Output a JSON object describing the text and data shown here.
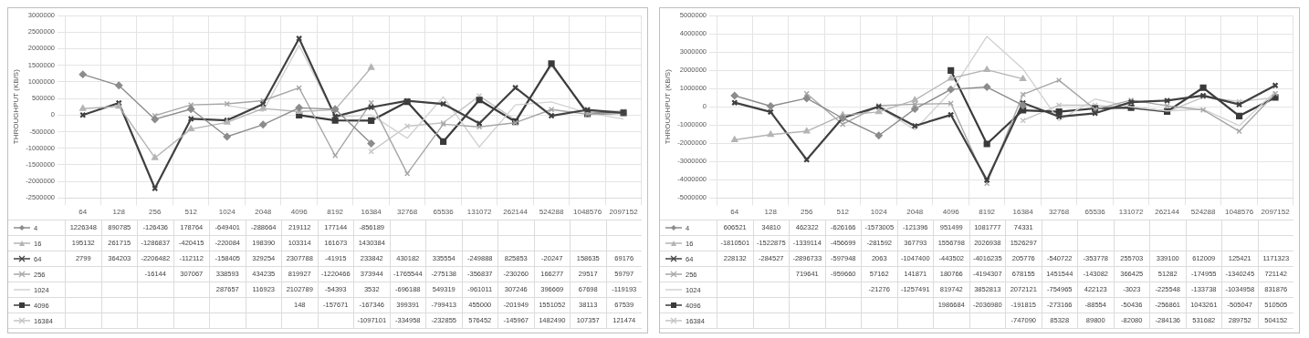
{
  "chart_data": [
    {
      "type": "line",
      "ylabel": "THROUGHPUT (KB/S)",
      "categories": [
        "64",
        "128",
        "256",
        "512",
        "1024",
        "2048",
        "4096",
        "8192",
        "16384",
        "32768",
        "65536",
        "131072",
        "262144",
        "524288",
        "1048576",
        "2097152"
      ],
      "ylim": [
        -2500000,
        3000000
      ],
      "yticks": [
        -2500000,
        -2000000,
        -1500000,
        -1000000,
        -500000,
        0,
        500000,
        1000000,
        1500000,
        2000000,
        2500000,
        3000000
      ],
      "grid": true,
      "legend": "bottom",
      "data_labels": true,
      "series": [
        {
          "name": "4",
          "color": "#8c8c8c",
          "marker": "diamond",
          "values": [
            1226348,
            890785,
            -126436,
            178764,
            -649401,
            -288664,
            219112,
            177144,
            -856189,
            null,
            null,
            null,
            null,
            null,
            null,
            null
          ]
        },
        {
          "name": "16",
          "color": "#b4b4b4",
          "marker": "triangle",
          "values": [
            195132,
            261715,
            -1286837,
            -420415,
            -220084,
            198390,
            103314,
            161673,
            1430384,
            null,
            null,
            null,
            null,
            null,
            null,
            null
          ]
        },
        {
          "name": "64",
          "color": "#404040",
          "marker": "cross",
          "values": [
            2799,
            364203,
            -2206482,
            -112112,
            -158405,
            329254,
            2307788,
            -41915,
            233842,
            430182,
            335554,
            -249888,
            825853,
            -20247,
            158635,
            69176
          ]
        },
        {
          "name": "256",
          "color": "#a6a6a6",
          "marker": "cross",
          "values": [
            null,
            null,
            -16144,
            307067,
            338593,
            434235,
            819927,
            -1220466,
            373944,
            -1765544,
            -275138,
            -356837,
            -230260,
            166277,
            29517,
            59797
          ]
        },
        {
          "name": "1024",
          "color": "#d2d2d2",
          "marker": "none",
          "values": [
            null,
            null,
            null,
            null,
            287657,
            116923,
            2102789,
            -54393,
            3532,
            -696188,
            549319,
            -961011,
            307246,
            396669,
            67698,
            -119193
          ]
        },
        {
          "name": "4096",
          "color": "#3a3a3a",
          "marker": "square",
          "values": [
            null,
            null,
            null,
            null,
            null,
            null,
            148,
            -157671,
            -167346,
            399391,
            -799413,
            455000,
            -201949,
            1551052,
            38113,
            67539
          ]
        },
        {
          "name": "16384",
          "color": "#c4c4c4",
          "marker": "cross",
          "values": [
            null,
            null,
            null,
            null,
            null,
            null,
            null,
            null,
            -1097101,
            -334958,
            -232855,
            576452,
            -145967,
            1482490,
            107357,
            121474
          ]
        }
      ]
    },
    {
      "type": "line",
      "ylabel": "THROUGHPUT (KB/S)",
      "categories": [
        "64",
        "128",
        "256",
        "512",
        "1024",
        "2048",
        "4096",
        "8192",
        "16384",
        "32768",
        "65536",
        "131072",
        "262144",
        "524288",
        "1048576",
        "2097152"
      ],
      "ylim": [
        -5000000,
        5000000
      ],
      "yticks": [
        -5000000,
        -4000000,
        -3000000,
        -2000000,
        -1000000,
        0,
        1000000,
        2000000,
        3000000,
        4000000,
        5000000
      ],
      "grid": true,
      "legend": "bottom",
      "data_labels": true,
      "series": [
        {
          "name": "4",
          "color": "#8c8c8c",
          "marker": "diamond",
          "values": [
            606521,
            34810,
            462322,
            -626166,
            -1573005,
            -121396,
            951499,
            1081777,
            74331,
            null,
            null,
            null,
            null,
            null,
            null,
            null
          ]
        },
        {
          "name": "16",
          "color": "#b4b4b4",
          "marker": "triangle",
          "values": [
            -1810501,
            -1522875,
            -1339114,
            -456699,
            -281592,
            367793,
            1556798,
            2026938,
            1526297,
            null,
            null,
            null,
            null,
            null,
            null,
            null
          ]
        },
        {
          "name": "64",
          "color": "#404040",
          "marker": "cross",
          "values": [
            228132,
            -284527,
            -2896733,
            -597948,
            2063,
            -1047400,
            -443502,
            -4016235,
            205776,
            -540722,
            -353778,
            255703,
            339100,
            612009,
            125421,
            1171323
          ]
        },
        {
          "name": "256",
          "color": "#a6a6a6",
          "marker": "cross",
          "values": [
            null,
            null,
            719641,
            -959660,
            57162,
            141871,
            180766,
            -4194307,
            678155,
            1451544,
            -143082,
            366425,
            51282,
            -174955,
            -1340245,
            721142
          ]
        },
        {
          "name": "1024",
          "color": "#d2d2d2",
          "marker": "none",
          "values": [
            null,
            null,
            null,
            null,
            -21276,
            -1257491,
            819742,
            3852813,
            2072121,
            -754965,
            422123,
            -3023,
            -225548,
            -133738,
            -1034958,
            831876
          ]
        },
        {
          "name": "4096",
          "color": "#3a3a3a",
          "marker": "square",
          "values": [
            null,
            null,
            null,
            null,
            null,
            null,
            1986684,
            -2036980,
            -191815,
            -273166,
            -88554,
            -50436,
            -256861,
            1043261,
            -505047,
            510505
          ]
        },
        {
          "name": "16384",
          "color": "#c4c4c4",
          "marker": "cross",
          "values": [
            null,
            null,
            null,
            null,
            null,
            null,
            null,
            null,
            -747090,
            85328,
            89800,
            -82080,
            -284136,
            531682,
            289752,
            504152
          ]
        }
      ]
    }
  ]
}
